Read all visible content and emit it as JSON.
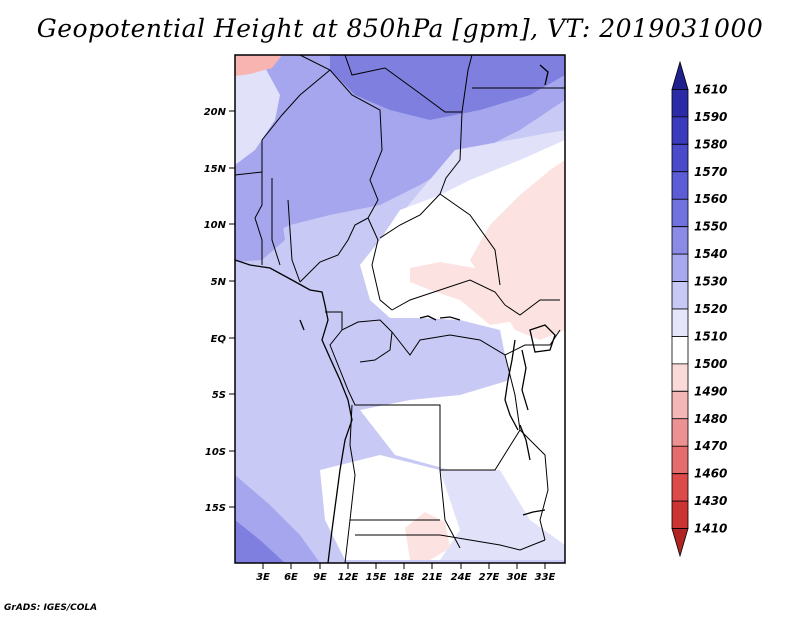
{
  "title": "Geopotential Height at 850hPa [gpm], VT: 2019031000",
  "credit": "GrADS: IGES/COLA",
  "lat_labels": [
    "20N",
    "15N",
    "10N",
    "5N",
    "EQ",
    "5S",
    "10S",
    "15S"
  ],
  "lon_labels": [
    "3E",
    "6E",
    "9E",
    "12E",
    "15E",
    "18E",
    "21E",
    "24E",
    "27E",
    "30E",
    "33E"
  ],
  "colorbar": {
    "levels": [
      "1610",
      "1590",
      "1580",
      "1570",
      "1560",
      "1550",
      "1540",
      "1530",
      "1520",
      "1510",
      "1500",
      "1490",
      "1480",
      "1470",
      "1460",
      "1430",
      "1410"
    ],
    "colors": [
      "#20208f",
      "#2b2ba8",
      "#3b3bbe",
      "#4a4acb",
      "#5c5cd6",
      "#7171df",
      "#8b8be6",
      "#a8a8ee",
      "#c8c8f5",
      "#e6e6fb",
      "#ffffff",
      "#fad9d9",
      "#f4b7b7",
      "#ec9292",
      "#e46c6c",
      "#dc4a4a",
      "#cc3434",
      "#b02424"
    ]
  },
  "map": {
    "colors": {
      "deep": "#7f7fe0",
      "mid": "#a6a6ee",
      "light": "#c9c9f5",
      "pale": "#e1e1fa",
      "white": "#ffffff",
      "pink": "#fde2e2",
      "salmon": "#f7b4b0"
    }
  }
}
